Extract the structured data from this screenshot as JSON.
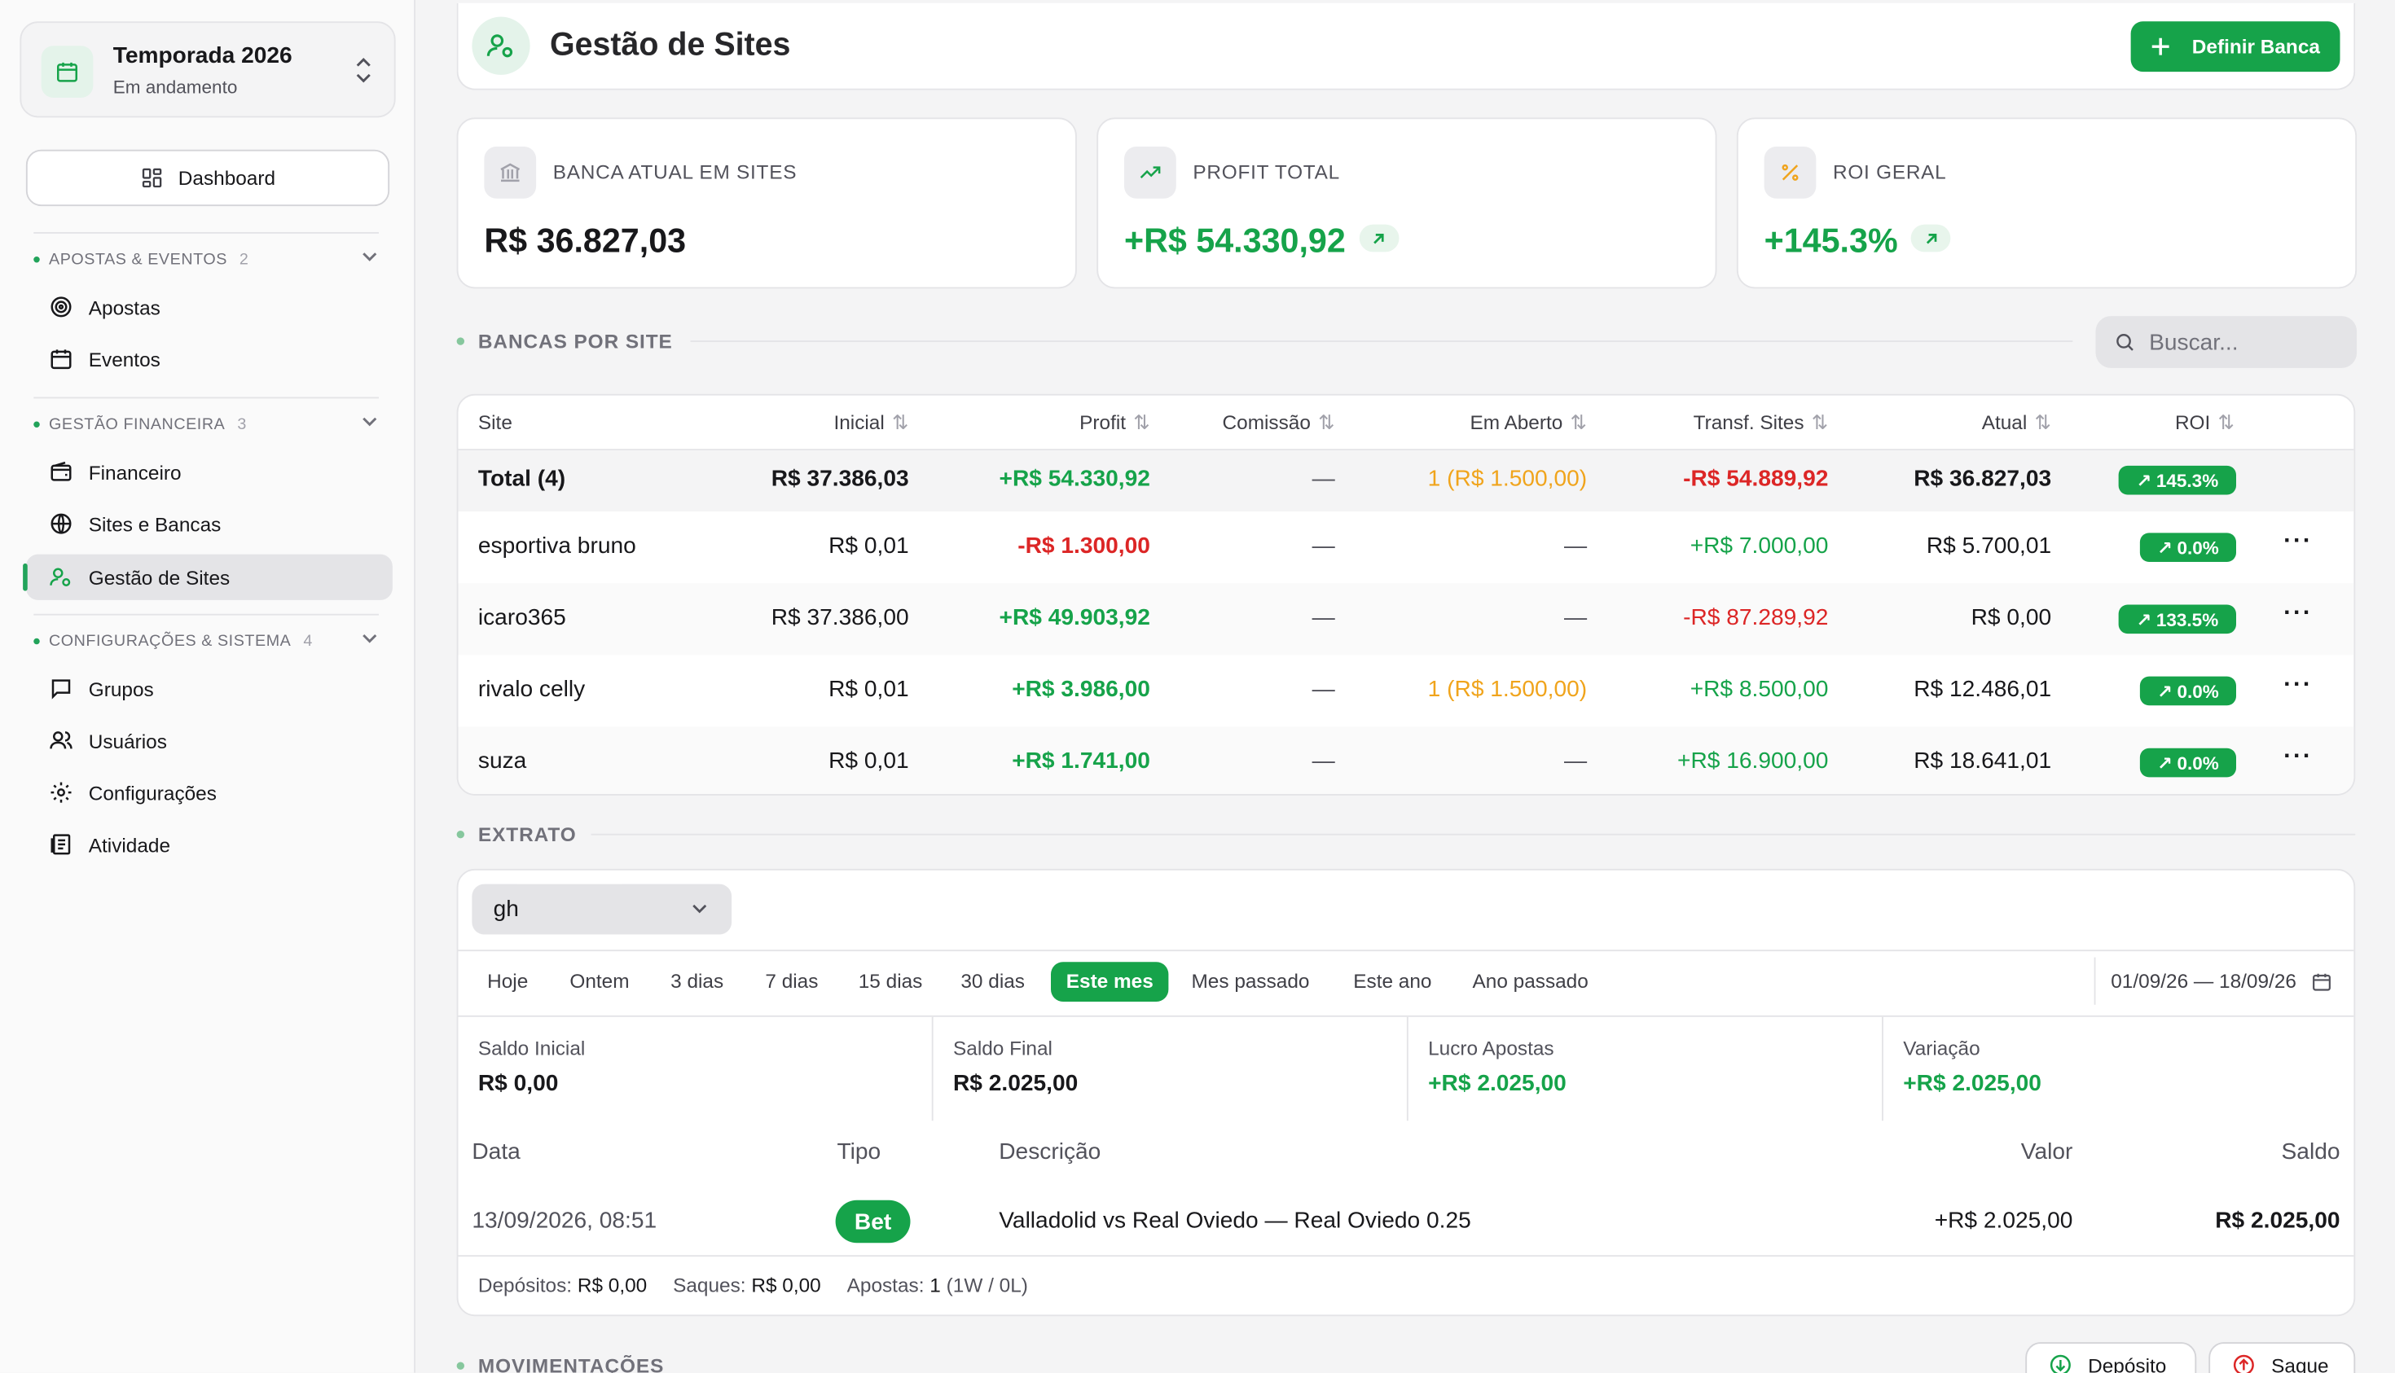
{
  "sidebar": {
    "season": {
      "title": "Temporada 2026",
      "status": "Em andamento"
    },
    "dashboard_label": "Dashboard",
    "sections": [
      {
        "label": "APOSTAS & EVENTOS",
        "count": "2"
      },
      {
        "label": "GESTÃO FINANCEIRA",
        "count": "3"
      },
      {
        "label": "CONFIGURAÇÕES & SISTEMA",
        "count": "4"
      }
    ],
    "items": [
      {
        "label": "Apostas",
        "icon": "target-icon"
      },
      {
        "label": "Eventos",
        "icon": "calendar-icon"
      },
      {
        "label": "Financeiro",
        "icon": "wallet-icon"
      },
      {
        "label": "Sites e Bancas",
        "icon": "globe-icon"
      },
      {
        "label": "Gestão de Sites",
        "icon": "user-cog-icon"
      },
      {
        "label": "Grupos",
        "icon": "message-icon"
      },
      {
        "label": "Usuários",
        "icon": "users-icon"
      },
      {
        "label": "Configurações",
        "icon": "gear-icon"
      },
      {
        "label": "Atividade",
        "icon": "activity-icon"
      }
    ]
  },
  "header": {
    "title": "Gestão de Sites",
    "action_label": "Definir Banca"
  },
  "cards": [
    {
      "label": "BANCA ATUAL EM SITES",
      "value": "R$ 36.827,03"
    },
    {
      "label": "PROFIT TOTAL",
      "value": "+R$ 54.330,92"
    },
    {
      "label": "ROI GERAL",
      "value": "+145.3%"
    }
  ],
  "bancas": {
    "section_title": "BANCAS POR SITE",
    "search_placeholder": "Buscar...",
    "columns": [
      "Site",
      "Inicial",
      "Profit",
      "Comissão",
      "Em Aberto",
      "Transf. Sites",
      "Atual",
      "ROI"
    ],
    "total": {
      "site": "Total (4)",
      "inicial": "R$ 37.386,03",
      "profit": "+R$ 54.330,92",
      "comissao": "—",
      "aberto": "1 (R$ 1.500,00)",
      "transf": "-R$ 54.889,92",
      "atual": "R$ 36.827,03",
      "roi": "145.3%"
    },
    "rows": [
      {
        "site": "esportiva bruno",
        "inicial": "R$ 0,01",
        "profit": "-R$ 1.300,00",
        "comissao": "—",
        "aberto": "—",
        "transf": "+R$ 7.000,00",
        "atual": "R$ 5.700,01",
        "roi": "0.0%"
      },
      {
        "site": "icaro365",
        "inicial": "R$ 37.386,00",
        "profit": "+R$ 49.903,92",
        "comissao": "—",
        "aberto": "—",
        "transf": "-R$ 87.289,92",
        "atual": "R$ 0,00",
        "roi": "133.5%"
      },
      {
        "site": "rivalo celly",
        "inicial": "R$ 0,01",
        "profit": "+R$ 3.986,00",
        "comissao": "—",
        "aberto": "1 (R$ 1.500,00)",
        "transf": "+R$ 8.500,00",
        "atual": "R$ 12.486,01",
        "roi": "0.0%"
      },
      {
        "site": "suza",
        "inicial": "R$ 0,01",
        "profit": "+R$ 1.741,00",
        "comissao": "—",
        "aberto": "—",
        "transf": "+R$ 16.900,00",
        "atual": "R$ 18.641,01",
        "roi": "0.0%"
      }
    ]
  },
  "extrato": {
    "section_title": "EXTRATO",
    "selected_site": "gh",
    "tabs": [
      "Hoje",
      "Ontem",
      "3 dias",
      "7 dias",
      "15 dias",
      "30 dias",
      "Este mes",
      "Mes passado",
      "Este ano",
      "Ano passado"
    ],
    "active_tab": "Este mes",
    "date_range": "01/09/26 — 18/09/26",
    "stats": [
      {
        "label": "Saldo Inicial",
        "value": "R$ 0,00"
      },
      {
        "label": "Saldo Final",
        "value": "R$ 2.025,00"
      },
      {
        "label": "Lucro Apostas",
        "value": "+R$ 2.025,00"
      },
      {
        "label": "Variação",
        "value": "+R$ 2.025,00"
      }
    ],
    "columns": [
      "Data",
      "Tipo",
      "Descrição",
      "Valor",
      "Saldo"
    ],
    "entry": {
      "data": "13/09/2026, 08:51",
      "tipo": "Bet",
      "descricao": "Valladolid vs Real Oviedo — Real Oviedo 0.25",
      "valor": "+R$ 2.025,00",
      "saldo": "R$ 2.025,00"
    },
    "footer": {
      "depositos_label": "Depósitos:",
      "depositos": "R$ 0,00",
      "saques_label": "Saques:",
      "saques": "R$ 0,00",
      "apostas_label": "Apostas:",
      "apostas": "1",
      "apostas_detail": "(1W / 0L)"
    }
  },
  "movimentacoes": {
    "section_title": "MOVIMENTAÇÕES",
    "deposit_label": "Depósito",
    "withdraw_label": "Saque"
  },
  "colors": {
    "accent": "#16a34a",
    "negative": "#dc2626",
    "warning": "#f0a41c"
  }
}
